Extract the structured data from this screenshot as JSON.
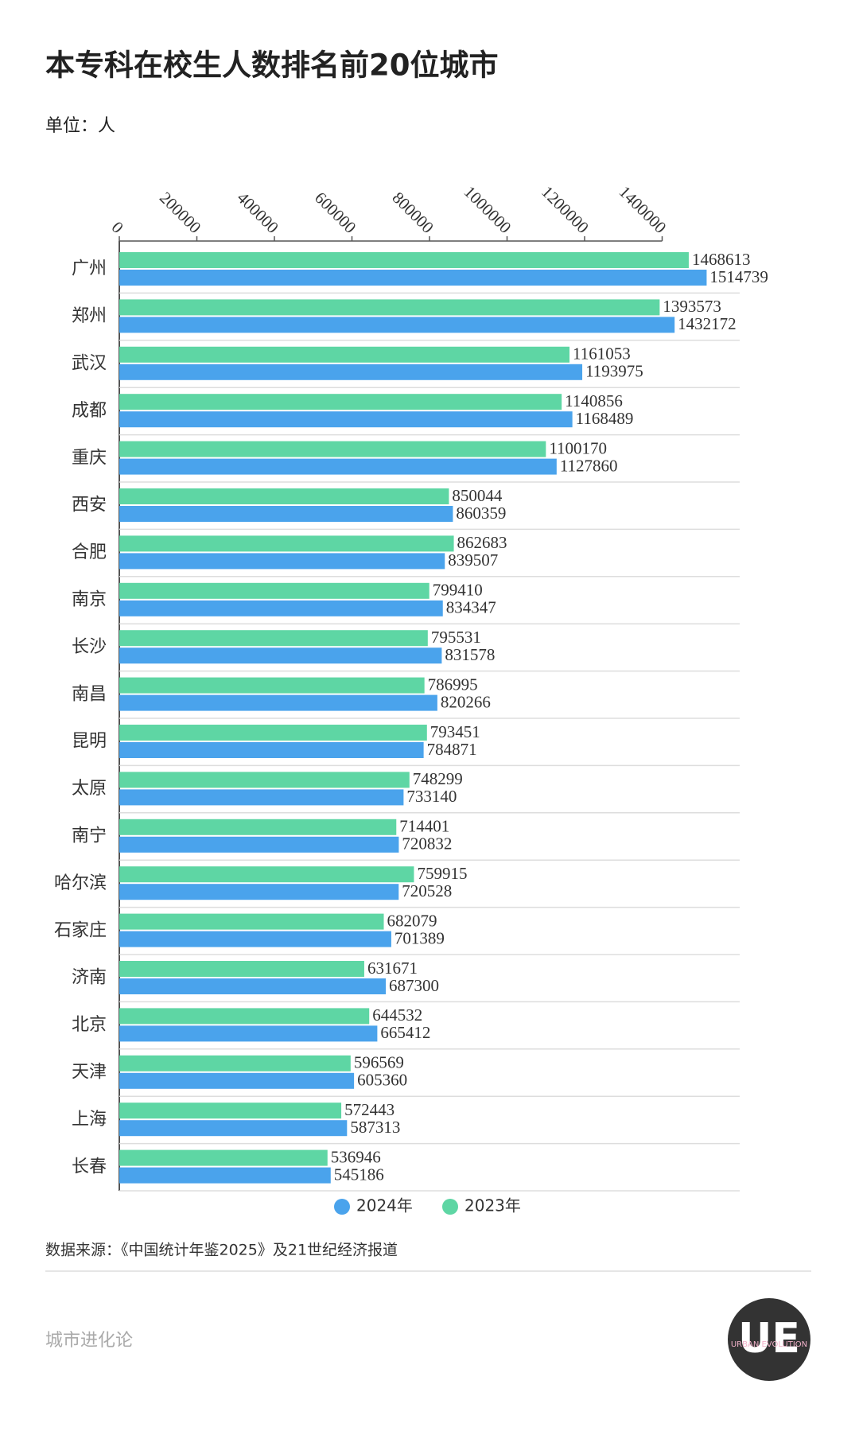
{
  "chart_data": {
    "type": "grouped-hbar",
    "title": "本专科在校生人数排名前20位城市",
    "unit_label": "单位：人",
    "categories": [
      "广州",
      "郑州",
      "武汉",
      "成都",
      "重庆",
      "西安",
      "合肥",
      "南京",
      "长沙",
      "南昌",
      "昆明",
      "太原",
      "南宁",
      "哈尔滨",
      "石家庄",
      "济南",
      "北京",
      "天津",
      "上海",
      "长春"
    ],
    "series": [
      {
        "name": "2024年",
        "color": "#4aa3ec",
        "values": [
          1514739,
          1432172,
          1193975,
          1168489,
          1127860,
          860359,
          839507,
          834347,
          831578,
          820266,
          784871,
          733140,
          720832,
          720528,
          701389,
          687300,
          665412,
          605360,
          587313,
          545186
        ]
      },
      {
        "name": "2023年",
        "color": "#5ed6a4",
        "values": [
          1468613,
          1393573,
          1161053,
          1140856,
          1100170,
          850044,
          862683,
          799410,
          795531,
          786995,
          793451,
          748299,
          714401,
          759915,
          682079,
          631671,
          644532,
          596569,
          572443,
          536946
        ]
      }
    ],
    "xlim": [
      0,
      1600000
    ],
    "xticks": [
      0,
      200000,
      400000,
      600000,
      800000,
      1000000,
      1200000,
      1400000
    ],
    "legend": "bottom",
    "source": "数据来源：《中国统计年鉴2025》及21世纪经济报道"
  },
  "footer": "城市进化论",
  "logo": {
    "text": "UE",
    "subtext": "URBAN EVOLUTION"
  }
}
